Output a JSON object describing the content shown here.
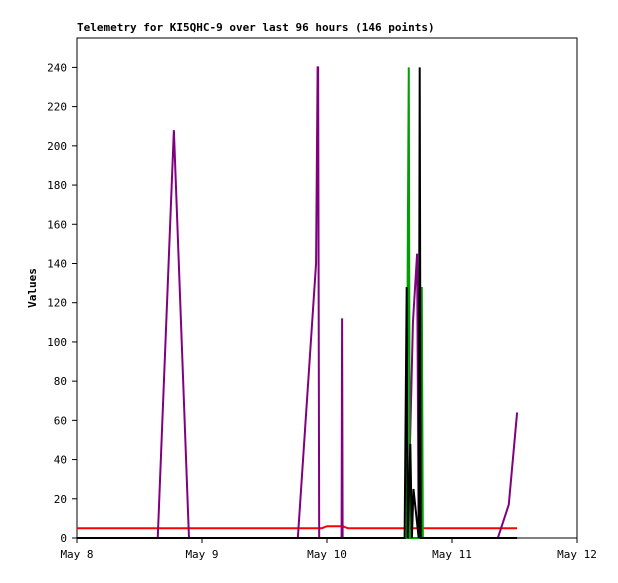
{
  "chart_data": {
    "type": "line",
    "title": "Telemetry for KI5QHC-9 over last 96 hours (146 points)",
    "y_label": "Values",
    "xlim": [
      0,
      96
    ],
    "xticks": [
      {
        "value": 0,
        "label": "May 8"
      },
      {
        "value": 24,
        "label": "May 9"
      },
      {
        "value": 48,
        "label": "May 10"
      },
      {
        "value": 72,
        "label": "May 11"
      },
      {
        "value": 96,
        "label": "May 12"
      }
    ],
    "ylim": [
      0,
      255
    ],
    "yticks": [
      0,
      20,
      40,
      60,
      80,
      100,
      120,
      140,
      160,
      180,
      200,
      220,
      240
    ],
    "grid": false,
    "series": [
      {
        "color": "#ff0000",
        "x": [
          0,
          47,
          48,
          51,
          52,
          84.5
        ],
        "values": [
          5,
          5,
          6,
          6,
          5,
          5
        ]
      },
      {
        "color": "#800080",
        "x": [
          0,
          15.5,
          18.6,
          21.5,
          42.4,
          45.9,
          46.2,
          46.3,
          46.5,
          50.8,
          50.9,
          51.0,
          62.5,
          63.5,
          64.5,
          65.3,
          65.6,
          80.8,
          82.9,
          84.5
        ],
        "values": [
          0,
          0,
          208,
          0,
          0,
          140,
          240,
          240,
          0,
          0,
          112,
          0,
          0,
          0,
          110,
          145,
          0,
          0,
          17,
          64
        ]
      },
      {
        "color": "#00a000",
        "x": [
          0,
          63.3,
          63.5,
          63.7,
          63.9,
          66.0,
          66.2,
          66.4,
          84.5
        ],
        "values": [
          0,
          0,
          145,
          240,
          0,
          0,
          128,
          0,
          0
        ]
      },
      {
        "color": "#000000",
        "x": [
          0,
          62.9,
          63.1,
          63.3,
          63.5,
          64.0,
          64.3,
          64.6,
          65.6,
          65.8,
          66.0,
          84.5
        ],
        "values": [
          0,
          0,
          64,
          128,
          0,
          48,
          0,
          25,
          0,
          240,
          0,
          0
        ]
      }
    ]
  }
}
